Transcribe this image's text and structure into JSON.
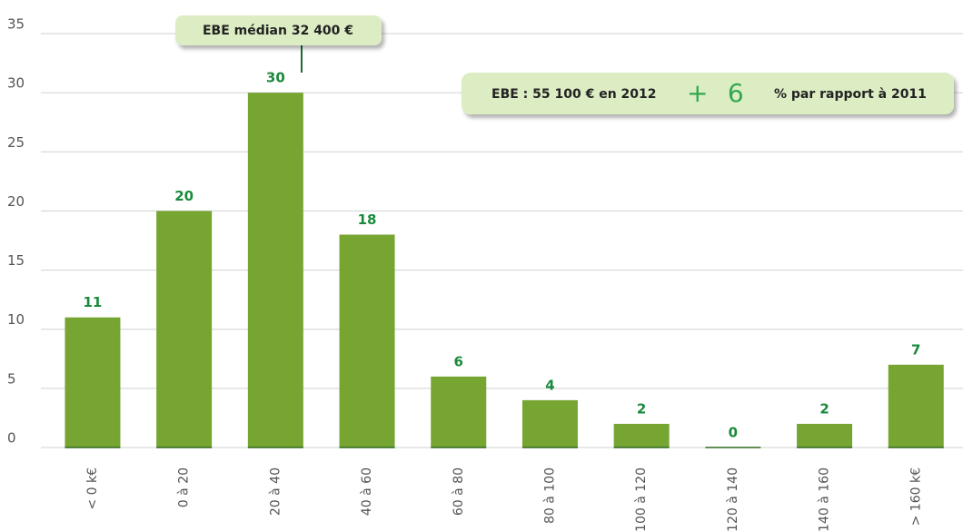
{
  "chart_data": {
    "type": "bar",
    "categories": [
      "< 0 k€",
      "0 à 20",
      "20 à 40",
      "40 à 60",
      "60 à 80",
      "80 à 100",
      "100 à 120",
      "120 à 140",
      "140 à 160",
      "> 160 k€"
    ],
    "values": [
      11,
      20,
      30,
      18,
      6,
      4,
      2,
      0,
      2,
      7
    ],
    "color": "#76a531",
    "ylim": [
      0,
      35
    ],
    "yticks": [
      0,
      5,
      10,
      15,
      20,
      25,
      30,
      35
    ],
    "grid": true,
    "annotations": {
      "median": "EBE médian 32 400 €",
      "summary": "EBE : 55 100 € en 2012",
      "sign": "+",
      "change": "6",
      "suffix": "% par rapport à 2011"
    }
  }
}
